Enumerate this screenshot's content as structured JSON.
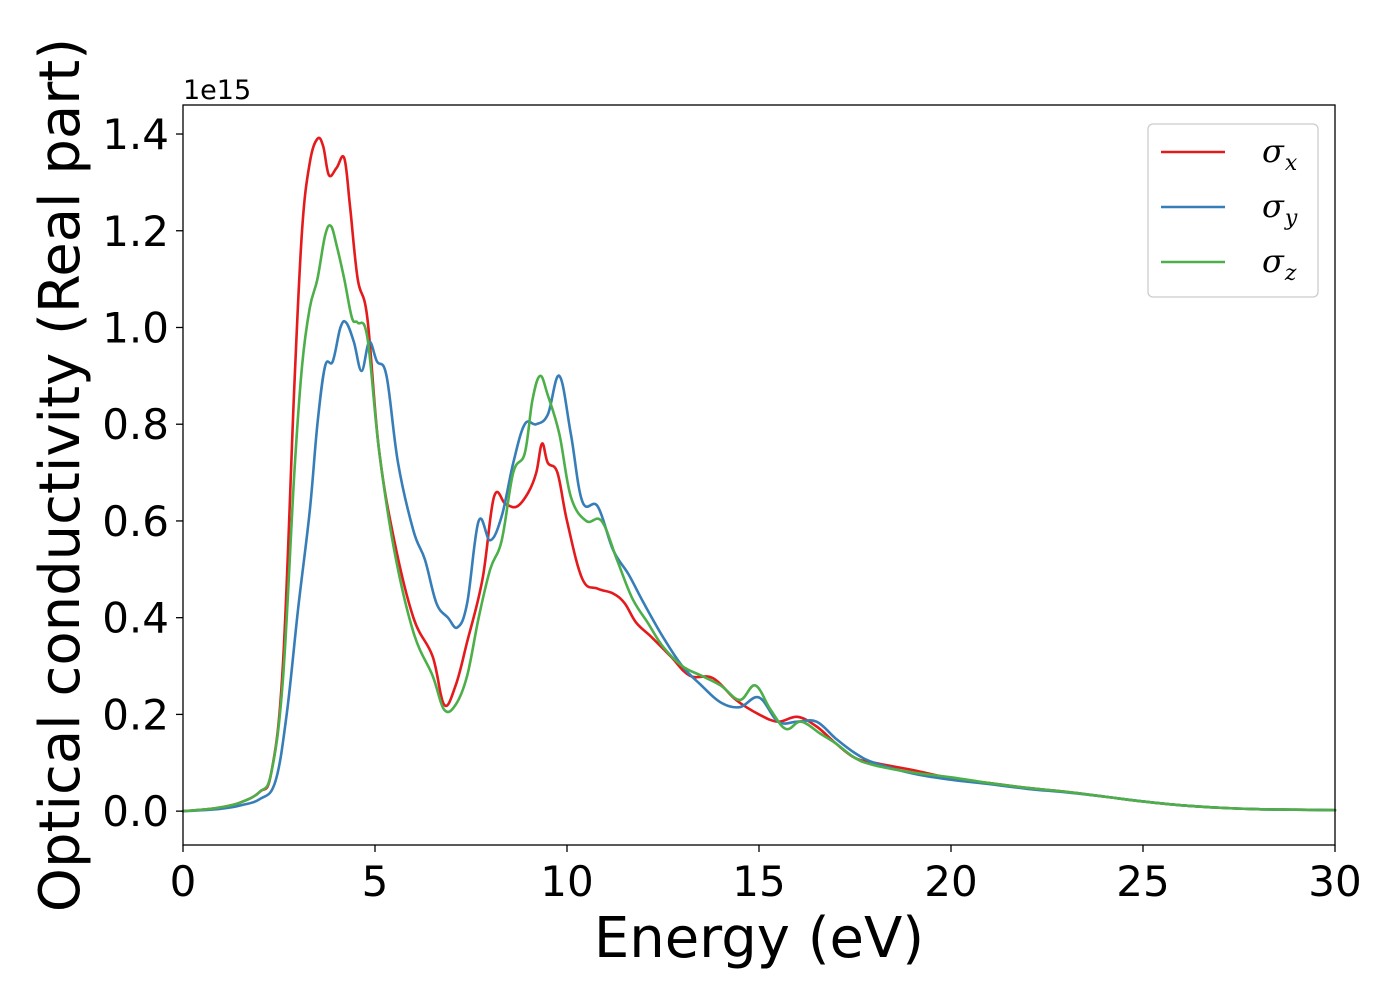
{
  "chart_data": {
    "type": "line",
    "xlabel": "Energy (eV)",
    "ylabel": "Optical conductivity (Real part)",
    "y_offset_text": "1e15",
    "y_scale_multiplier": 1000000000000000.0,
    "xlim": [
      0,
      30
    ],
    "ylim": [
      -0.07,
      1.46
    ],
    "x_ticks": [
      0,
      5,
      10,
      15,
      20,
      25,
      30
    ],
    "y_ticks": [
      0.0,
      0.2,
      0.4,
      0.6,
      0.8,
      1.0,
      1.2,
      1.4
    ],
    "x_tick_labels": [
      "0",
      "5",
      "10",
      "15",
      "20",
      "25",
      "30"
    ],
    "y_tick_labels": [
      "0.0",
      "0.2",
      "0.4",
      "0.6",
      "0.8",
      "1.0",
      "1.2",
      "1.4"
    ],
    "grid": false,
    "legend_position": "top-right",
    "series": [
      {
        "name": "σx",
        "symbol": "σ",
        "subscript": "x",
        "color": "#e41a1c",
        "x": [
          0,
          0.5,
          1,
          1.5,
          2,
          2.3,
          2.6,
          2.9,
          3.1,
          3.3,
          3.5,
          3.65,
          3.8,
          4.0,
          4.2,
          4.35,
          4.55,
          4.8,
          5.1,
          5.5,
          6.0,
          6.5,
          6.8,
          7.1,
          7.4,
          7.8,
          8.1,
          8.4,
          8.7,
          9.0,
          9.2,
          9.35,
          9.5,
          9.75,
          10.0,
          10.4,
          10.8,
          11.2,
          11.5,
          11.8,
          12.2,
          12.7,
          13.2,
          13.8,
          14.4,
          15.0,
          15.5,
          16.0,
          16.5,
          17.0,
          17.5,
          18.0,
          19.0,
          20.0,
          21.0,
          22.0,
          23.0,
          24.0,
          25.0,
          26.0,
          27.0,
          28.0,
          29.0,
          30.0
        ],
        "values": [
          0.0,
          0.003,
          0.008,
          0.018,
          0.04,
          0.08,
          0.3,
          0.88,
          1.2,
          1.34,
          1.39,
          1.375,
          1.315,
          1.33,
          1.35,
          1.25,
          1.1,
          1.02,
          0.75,
          0.56,
          0.4,
          0.32,
          0.22,
          0.26,
          0.35,
          0.48,
          0.65,
          0.635,
          0.63,
          0.66,
          0.7,
          0.76,
          0.72,
          0.7,
          0.6,
          0.48,
          0.46,
          0.45,
          0.43,
          0.39,
          0.36,
          0.32,
          0.28,
          0.275,
          0.23,
          0.2,
          0.185,
          0.195,
          0.175,
          0.14,
          0.11,
          0.1,
          0.085,
          0.068,
          0.058,
          0.048,
          0.04,
          0.03,
          0.02,
          0.012,
          0.007,
          0.004,
          0.003,
          0.002
        ]
      },
      {
        "name": "σy",
        "symbol": "σ",
        "subscript": "y",
        "color": "#377eb8",
        "x": [
          0,
          0.5,
          1,
          1.5,
          2,
          2.4,
          2.7,
          3.0,
          3.3,
          3.5,
          3.7,
          3.9,
          4.1,
          4.25,
          4.45,
          4.65,
          4.85,
          5.05,
          5.3,
          5.6,
          6.0,
          6.3,
          6.6,
          6.9,
          7.15,
          7.4,
          7.7,
          8.0,
          8.3,
          8.6,
          8.9,
          9.2,
          9.5,
          9.8,
          10.1,
          10.4,
          10.8,
          11.2,
          11.6,
          12.0,
          12.5,
          13.0,
          13.5,
          14.0,
          14.5,
          15.0,
          15.5,
          16.0,
          16.5,
          17.0,
          17.5,
          18.0,
          19.0,
          20.0,
          21.0,
          22.0,
          23.0,
          24.0,
          25.0,
          26.0,
          27.0,
          28.0,
          29.0,
          30.0
        ],
        "values": [
          0.0,
          0.002,
          0.005,
          0.012,
          0.025,
          0.06,
          0.2,
          0.42,
          0.62,
          0.8,
          0.92,
          0.93,
          1.0,
          1.01,
          0.97,
          0.91,
          0.97,
          0.93,
          0.9,
          0.72,
          0.58,
          0.52,
          0.43,
          0.4,
          0.38,
          0.43,
          0.6,
          0.56,
          0.61,
          0.72,
          0.8,
          0.8,
          0.82,
          0.9,
          0.78,
          0.64,
          0.63,
          0.54,
          0.49,
          0.43,
          0.36,
          0.3,
          0.26,
          0.225,
          0.215,
          0.235,
          0.185,
          0.185,
          0.185,
          0.15,
          0.12,
          0.1,
          0.078,
          0.065,
          0.056,
          0.046,
          0.039,
          0.03,
          0.02,
          0.012,
          0.007,
          0.004,
          0.003,
          0.002
        ]
      },
      {
        "name": "σz",
        "symbol": "σ",
        "subscript": "z",
        "color": "#4daf4a",
        "x": [
          0,
          0.5,
          1,
          1.5,
          2,
          2.3,
          2.6,
          2.9,
          3.1,
          3.3,
          3.5,
          3.7,
          3.85,
          4.0,
          4.2,
          4.4,
          4.55,
          4.8,
          5.1,
          5.5,
          6.0,
          6.5,
          6.8,
          7.1,
          7.4,
          7.7,
          8.0,
          8.3,
          8.6,
          8.9,
          9.1,
          9.3,
          9.5,
          9.8,
          10.1,
          10.5,
          10.9,
          11.3,
          11.7,
          12.1,
          12.5,
          13.0,
          13.5,
          14.0,
          14.5,
          14.9,
          15.3,
          15.7,
          16.1,
          16.6,
          17.0,
          17.5,
          18.0,
          19.0,
          20.0,
          21.0,
          22.0,
          23.0,
          24.0,
          25.0,
          26.0,
          27.0,
          28.0,
          29.0,
          30.0
        ],
        "values": [
          0.0,
          0.003,
          0.008,
          0.018,
          0.04,
          0.08,
          0.27,
          0.7,
          0.92,
          1.04,
          1.1,
          1.19,
          1.21,
          1.17,
          1.1,
          1.02,
          1.01,
          0.98,
          0.75,
          0.54,
          0.37,
          0.28,
          0.21,
          0.22,
          0.28,
          0.4,
          0.5,
          0.56,
          0.7,
          0.74,
          0.85,
          0.9,
          0.86,
          0.78,
          0.65,
          0.6,
          0.6,
          0.52,
          0.44,
          0.39,
          0.34,
          0.3,
          0.28,
          0.26,
          0.23,
          0.26,
          0.21,
          0.17,
          0.185,
          0.16,
          0.14,
          0.11,
          0.095,
          0.08,
          0.07,
          0.058,
          0.048,
          0.04,
          0.03,
          0.02,
          0.012,
          0.007,
          0.004,
          0.003,
          0.002
        ]
      }
    ]
  }
}
